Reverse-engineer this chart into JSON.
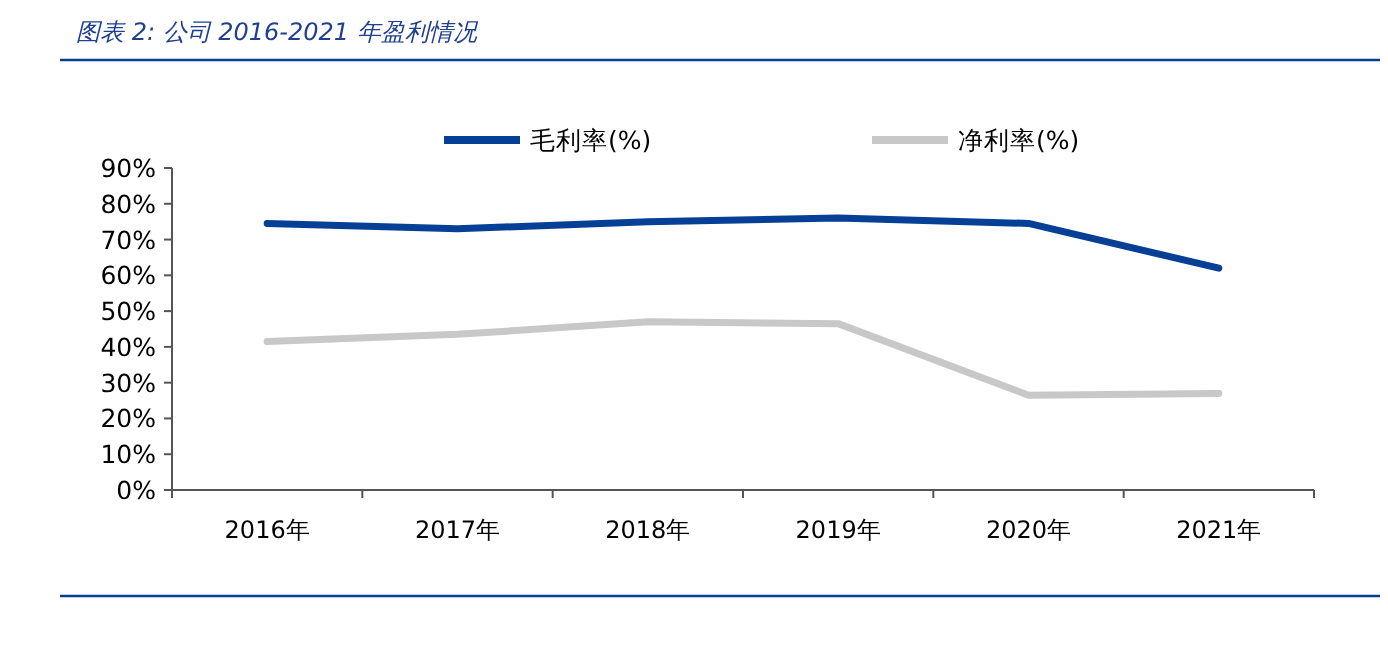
{
  "chart_data": {
    "type": "line",
    "title": "图表 2:  公司 2016-2021 年盈利情况",
    "categories": [
      "2016年",
      "2017年",
      "2018年",
      "2019年",
      "2020年",
      "2021年"
    ],
    "series": [
      {
        "name": "毛利率(%)",
        "color": "#063f96",
        "values": [
          74.5,
          73,
          75,
          76,
          74.5,
          62
        ]
      },
      {
        "name": "净利率(%)",
        "color": "#c8c8c8",
        "values": [
          41.5,
          43.5,
          47,
          46.5,
          26.5,
          27
        ]
      }
    ],
    "ylim": [
      0,
      90
    ],
    "yticks": [
      {
        "value": 0,
        "label": "0%"
      },
      {
        "value": 10,
        "label": "10%"
      },
      {
        "value": 20,
        "label": "20%"
      },
      {
        "value": 30,
        "label": "30%"
      },
      {
        "value": 40,
        "label": "40%"
      },
      {
        "value": 50,
        "label": "50%"
      },
      {
        "value": 60,
        "label": "60%"
      },
      {
        "value": 70,
        "label": "70%"
      },
      {
        "value": 80,
        "label": "80%"
      },
      {
        "value": 90,
        "label": "90%"
      }
    ],
    "legend": "top",
    "grid": false,
    "marker": "none",
    "line_style": "solid"
  }
}
